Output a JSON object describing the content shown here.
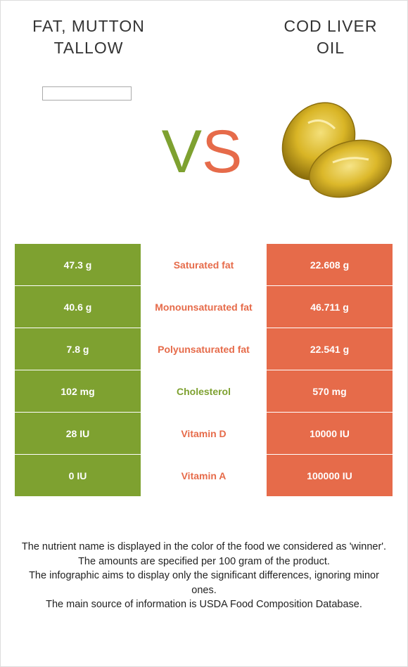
{
  "left_food": {
    "name": "FAT, MUTTON\nTALLOW"
  },
  "right_food": {
    "name": "COD LIVER\nOIL"
  },
  "vs": {
    "v": "V",
    "s": "S"
  },
  "colors": {
    "left": "#7ea130",
    "right": "#e66b4a"
  },
  "rows": [
    {
      "left": "47.3 g",
      "nutrient": "Saturated fat",
      "right": "22.608 g",
      "winner": "right"
    },
    {
      "left": "40.6 g",
      "nutrient": "Monounsaturated fat",
      "right": "46.711 g",
      "winner": "right"
    },
    {
      "left": "7.8 g",
      "nutrient": "Polyunsaturated fat",
      "right": "22.541 g",
      "winner": "right"
    },
    {
      "left": "102 mg",
      "nutrient": "Cholesterol",
      "right": "570 mg",
      "winner": "left"
    },
    {
      "left": "28 IU",
      "nutrient": "Vitamin D",
      "right": "10000 IU",
      "winner": "right"
    },
    {
      "left": "0 IU",
      "nutrient": "Vitamin A",
      "right": "100000 IU",
      "winner": "right"
    }
  ],
  "footer": {
    "line1": "The nutrient name is displayed in the color of the food we considered as 'winner'.",
    "line2": "The amounts are specified per 100 gram of the product.",
    "line3": "The infographic aims to display only the significant differences, ignoring minor ones.",
    "line4": "The main source of information is USDA Food Composition Database."
  }
}
